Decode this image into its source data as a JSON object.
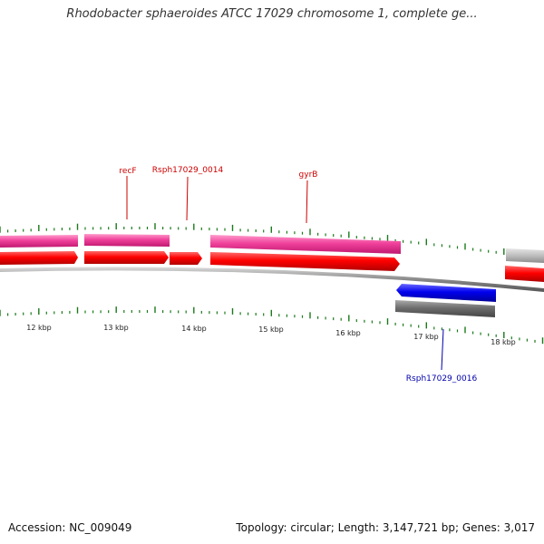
{
  "title": "Rhodobacter sphaeroides ATCC 17029 chromosome 1, complete ge...",
  "footer": {
    "accession": "Accession: NC_009049",
    "stats": "Topology: circular; Length: 3,147,721 bp; Genes: 3,017"
  },
  "colors": {
    "cds_forward": "#ff0000",
    "gene_forward": "#f0419b",
    "cds_reverse": "#0000ff",
    "gene_reverse": "#777777",
    "tick": "#1a7a1a",
    "label_forward": "#cc0000",
    "label_reverse": "#0000aa"
  },
  "scale": {
    "tick_labels": [
      "12 kbp",
      "13 kbp",
      "14 kbp",
      "15 kbp",
      "16 kbp",
      "17 kbp",
      "18 kbp"
    ]
  },
  "gene_labels": [
    {
      "text": "recF",
      "strand": "forward"
    },
    {
      "text": "Rsph17029_0014",
      "strand": "forward"
    },
    {
      "text": "gyrB",
      "strand": "forward"
    },
    {
      "text": "Rsph17029_0016",
      "strand": "reverse"
    }
  ]
}
